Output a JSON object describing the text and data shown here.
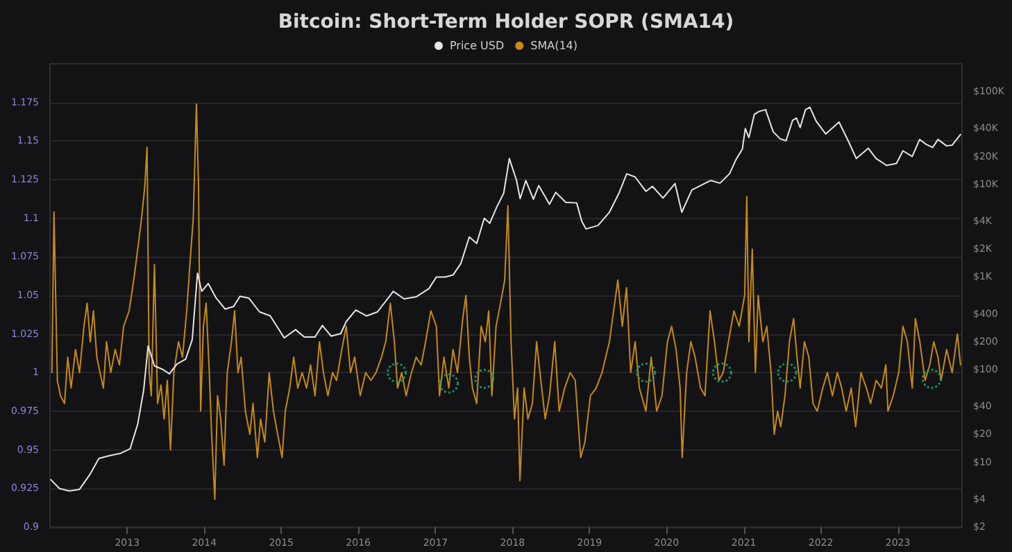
{
  "chart_data": {
    "type": "line",
    "title": "Bitcoin: Short-Term Holder SOPR (SMA14)",
    "legend": "top",
    "grid": "y",
    "xlim": [
      "2012-01-01",
      "2023-11-01"
    ],
    "xticks": [
      "2013",
      "2014",
      "2015",
      "2016",
      "2017",
      "2018",
      "2019",
      "2020",
      "2021",
      "2022",
      "2023"
    ],
    "ylim": [
      0.9,
      1.2
    ],
    "yticks": [
      0.9,
      0.925,
      0.95,
      0.975,
      1,
      1.025,
      1.05,
      1.075,
      1.1,
      1.125,
      1.15,
      1.175
    ],
    "log": "y2",
    "y2lim": [
      2,
      200000
    ],
    "y2ticks": [
      {
        "value": 2,
        "label": "$2"
      },
      {
        "value": 4,
        "label": "$4"
      },
      {
        "value": 10,
        "label": "$10"
      },
      {
        "value": 20,
        "label": "$20"
      },
      {
        "value": 40,
        "label": "$40"
      },
      {
        "value": 100,
        "label": "$100"
      },
      {
        "value": 200,
        "label": "$200"
      },
      {
        "value": 400,
        "label": "$400"
      },
      {
        "value": 1000,
        "label": "$1K"
      },
      {
        "value": 2000,
        "label": "$2K"
      },
      {
        "value": 4000,
        "label": "$4K"
      },
      {
        "value": 10000,
        "label": "$10K"
      },
      {
        "value": 20000,
        "label": "$20K"
      },
      {
        "value": 40000,
        "label": "$40K"
      },
      {
        "value": 100000,
        "label": "$100K"
      }
    ],
    "series": [
      {
        "name": "Price USD",
        "color": "#e6e6e6",
        "axis": "y2",
        "marker": "none",
        "x": [
          "2012-01-05",
          "2012-02-15",
          "2012-04-01",
          "2012-05-20",
          "2012-07-10",
          "2012-08-20",
          "2012-10-10",
          "2012-12-01",
          "2013-01-15",
          "2013-02-20",
          "2013-03-20",
          "2013-04-10",
          "2013-05-10",
          "2013-06-20",
          "2013-07-20",
          "2013-08-25",
          "2013-10-05",
          "2013-11-05",
          "2013-11-30",
          "2013-12-20",
          "2014-01-20",
          "2014-02-25",
          "2014-04-10",
          "2014-05-20",
          "2014-06-20",
          "2014-08-01",
          "2014-09-20",
          "2014-11-10",
          "2015-01-15",
          "2015-03-10",
          "2015-04-20",
          "2015-06-10",
          "2015-07-15",
          "2015-08-25",
          "2015-10-10",
          "2015-11-05",
          "2015-12-20",
          "2016-02-10",
          "2016-04-01",
          "2016-06-15",
          "2016-08-05",
          "2016-10-01",
          "2016-12-01",
          "2017-01-05",
          "2017-02-15",
          "2017-03-25",
          "2017-05-01",
          "2017-06-10",
          "2017-07-15",
          "2017-08-20",
          "2017-09-15",
          "2017-10-20",
          "2017-11-20",
          "2017-12-17",
          "2018-01-20",
          "2018-02-06",
          "2018-03-05",
          "2018-04-10",
          "2018-05-05",
          "2018-06-25",
          "2018-07-25",
          "2018-09-10",
          "2018-11-01",
          "2018-11-25",
          "2018-12-15",
          "2019-02-10",
          "2019-04-05",
          "2019-05-20",
          "2019-06-26",
          "2019-08-05",
          "2019-09-25",
          "2019-10-26",
          "2019-12-15",
          "2020-02-10",
          "2020-03-13",
          "2020-04-30",
          "2020-06-10",
          "2020-07-28",
          "2020-09-10",
          "2020-10-25",
          "2020-11-25",
          "2020-12-25",
          "2021-01-08",
          "2021-01-25",
          "2021-02-20",
          "2021-03-13",
          "2021-04-14",
          "2021-05-20",
          "2021-06-22",
          "2021-07-20",
          "2021-08-20",
          "2021-09-07",
          "2021-09-25",
          "2021-10-20",
          "2021-11-10",
          "2021-12-10",
          "2022-01-24",
          "2022-03-28",
          "2022-05-12",
          "2022-06-18",
          "2022-08-14",
          "2022-09-20",
          "2022-11-09",
          "2022-12-25",
          "2023-01-25",
          "2023-03-10",
          "2023-04-14",
          "2023-05-15",
          "2023-06-15",
          "2023-07-10",
          "2023-08-20",
          "2023-09-15",
          "2023-10-25"
        ],
        "values": [
          6.5,
          5.2,
          4.9,
          5.1,
          7.5,
          11,
          11.8,
          12.5,
          14,
          26,
          60,
          180,
          110,
          100,
          90,
          115,
          130,
          210,
          1100,
          700,
          850,
          600,
          450,
          480,
          620,
          590,
          420,
          380,
          220,
          270,
          225,
          225,
          300,
          230,
          245,
          330,
          440,
          380,
          420,
          700,
          580,
          610,
          750,
          1000,
          1000,
          1050,
          1400,
          2700,
          2300,
          4300,
          3800,
          5800,
          8000,
          19000,
          11000,
          7000,
          11000,
          6900,
          9700,
          6100,
          8200,
          6400,
          6300,
          4000,
          3300,
          3600,
          5000,
          8000,
          13000,
          12000,
          8400,
          9500,
          7100,
          10200,
          5000,
          8700,
          9700,
          11000,
          10300,
          13000,
          18500,
          24000,
          40000,
          32000,
          57000,
          61000,
          64000,
          37000,
          31000,
          29500,
          49000,
          52000,
          41000,
          64000,
          68000,
          48000,
          35000,
          47000,
          29000,
          19000,
          24500,
          19000,
          16000,
          16800,
          23000,
          20000,
          30500,
          27000,
          25000,
          30500,
          26000,
          26500,
          34500
        ]
      },
      {
        "name": "SMA(14)",
        "color": "#c58a18",
        "marker": "none",
        "x": [
          "2012-01-10",
          "2012-01-20",
          "2012-02-05",
          "2012-02-20",
          "2012-03-10",
          "2012-03-25",
          "2012-04-10",
          "2012-05-01",
          "2012-05-20",
          "2012-06-10",
          "2012-06-25",
          "2012-07-10",
          "2012-07-25",
          "2012-08-10",
          "2012-08-25",
          "2012-09-10",
          "2012-09-25",
          "2012-10-15",
          "2012-11-05",
          "2012-11-25",
          "2012-12-15",
          "2013-01-10",
          "2013-02-01",
          "2013-02-20",
          "2013-03-10",
          "2013-03-25",
          "2013-04-05",
          "2013-04-15",
          "2013-04-25",
          "2013-05-10",
          "2013-05-25",
          "2013-06-10",
          "2013-06-25",
          "2013-07-10",
          "2013-07-25",
          "2013-08-10",
          "2013-09-01",
          "2013-09-20",
          "2013-10-10",
          "2013-10-25",
          "2013-11-10",
          "2013-11-25",
          "2013-12-05",
          "2013-12-15",
          "2013-12-28",
          "2014-01-10",
          "2014-01-25",
          "2014-02-05",
          "2014-02-20",
          "2014-03-05",
          "2014-03-20",
          "2014-04-05",
          "2014-04-20",
          "2014-05-10",
          "2014-05-25",
          "2014-06-10",
          "2014-06-25",
          "2014-07-15",
          "2014-08-05",
          "2014-08-20",
          "2014-09-10",
          "2014-09-25",
          "2014-10-15",
          "2014-11-05",
          "2014-11-25",
          "2014-12-15",
          "2015-01-05",
          "2015-01-20",
          "2015-02-10",
          "2015-03-01",
          "2015-03-20",
          "2015-04-10",
          "2015-05-01",
          "2015-05-20",
          "2015-06-10",
          "2015-07-01",
          "2015-07-20",
          "2015-08-10",
          "2015-09-01",
          "2015-09-20",
          "2015-10-15",
          "2015-11-05",
          "2015-11-25",
          "2015-12-15",
          "2016-01-10",
          "2016-02-05",
          "2016-03-01",
          "2016-03-25",
          "2016-04-20",
          "2016-05-10",
          "2016-06-01",
          "2016-06-20",
          "2016-07-05",
          "2016-07-25",
          "2016-08-15",
          "2016-09-05",
          "2016-10-01",
          "2016-10-25",
          "2016-11-15",
          "2016-12-10",
          "2017-01-05",
          "2017-01-20",
          "2017-02-10",
          "2017-03-05",
          "2017-03-25",
          "2017-04-15",
          "2017-05-10",
          "2017-05-25",
          "2017-06-10",
          "2017-06-25",
          "2017-07-15",
          "2017-08-05",
          "2017-08-25",
          "2017-09-10",
          "2017-09-25",
          "2017-10-15",
          "2017-11-05",
          "2017-11-25",
          "2017-12-10",
          "2017-12-25",
          "2018-01-10",
          "2018-01-25",
          "2018-02-05",
          "2018-02-25",
          "2018-03-15",
          "2018-04-05",
          "2018-04-25",
          "2018-05-15",
          "2018-06-05",
          "2018-06-25",
          "2018-07-20",
          "2018-08-10",
          "2018-09-05",
          "2018-10-01",
          "2018-10-25",
          "2018-11-20",
          "2018-12-10",
          "2019-01-05",
          "2019-02-01",
          "2019-03-01",
          "2019-04-05",
          "2019-04-25",
          "2019-05-15",
          "2019-06-05",
          "2019-06-25",
          "2019-07-15",
          "2019-08-05",
          "2019-08-25",
          "2019-09-25",
          "2019-10-20",
          "2019-11-15",
          "2019-12-10",
          "2020-01-05",
          "2020-01-25",
          "2020-02-15",
          "2020-03-05",
          "2020-03-15",
          "2020-04-05",
          "2020-04-25",
          "2020-05-15",
          "2020-06-10",
          "2020-07-01",
          "2020-07-25",
          "2020-08-15",
          "2020-09-05",
          "2020-09-25",
          "2020-10-20",
          "2020-11-15",
          "2020-12-10",
          "2021-01-05",
          "2021-01-15",
          "2021-01-25",
          "2021-02-10",
          "2021-02-25",
          "2021-03-10",
          "2021-04-01",
          "2021-04-20",
          "2021-05-10",
          "2021-05-25",
          "2021-06-10",
          "2021-06-25",
          "2021-07-15",
          "2021-08-05",
          "2021-08-25",
          "2021-09-10",
          "2021-09-25",
          "2021-10-15",
          "2021-11-05",
          "2021-11-25",
          "2021-12-15",
          "2022-01-10",
          "2022-02-01",
          "2022-02-25",
          "2022-03-20",
          "2022-04-10",
          "2022-05-01",
          "2022-05-25",
          "2022-06-15",
          "2022-07-10",
          "2022-08-05",
          "2022-08-25",
          "2022-09-20",
          "2022-10-15",
          "2022-11-05",
          "2022-11-15",
          "2022-12-10",
          "2023-01-05",
          "2023-01-25",
          "2023-02-15",
          "2023-03-10",
          "2023-03-25",
          "2023-04-15",
          "2023-05-10",
          "2023-06-01",
          "2023-06-20",
          "2023-07-10",
          "2023-07-25",
          "2023-08-20",
          "2023-09-15",
          "2023-10-10",
          "2023-10-25"
        ],
        "values": [
          1.0,
          1.104,
          0.995,
          0.985,
          0.98,
          1.01,
          0.99,
          1.015,
          1.0,
          1.03,
          1.045,
          1.02,
          1.04,
          1.01,
          1.0,
          0.99,
          1.02,
          1.0,
          1.015,
          1.005,
          1.03,
          1.04,
          1.06,
          1.08,
          1.1,
          1.12,
          1.146,
          1.0,
          0.985,
          1.07,
          0.98,
          0.992,
          0.97,
          0.995,
          0.95,
          1.0,
          1.02,
          1.01,
          1.04,
          1.07,
          1.1,
          1.174,
          1.12,
          0.975,
          1.03,
          1.045,
          1.0,
          0.96,
          0.918,
          0.985,
          0.97,
          0.94,
          1.0,
          1.02,
          1.04,
          1.0,
          1.01,
          0.975,
          0.96,
          0.98,
          0.945,
          0.97,
          0.955,
          1.0,
          0.975,
          0.96,
          0.945,
          0.975,
          0.99,
          1.01,
          0.99,
          1.0,
          0.99,
          1.005,
          0.985,
          1.02,
          1.0,
          0.985,
          1.0,
          0.995,
          1.015,
          1.03,
          1.0,
          1.01,
          0.985,
          1.0,
          0.995,
          1.0,
          1.01,
          1.02,
          1.045,
          1.02,
          0.99,
          1.0,
          0.985,
          0.998,
          1.01,
          1.005,
          1.02,
          1.04,
          1.03,
          0.985,
          1.01,
          0.99,
          1.015,
          1.0,
          1.035,
          1.05,
          1.01,
          0.99,
          0.98,
          1.03,
          1.02,
          1.04,
          0.985,
          1.03,
          1.045,
          1.06,
          1.108,
          1.02,
          0.97,
          0.99,
          0.93,
          0.99,
          0.97,
          0.98,
          1.02,
          0.995,
          0.97,
          0.985,
          1.02,
          0.975,
          0.99,
          1.0,
          0.995,
          0.945,
          0.955,
          0.985,
          0.99,
          1.0,
          1.02,
          1.04,
          1.06,
          1.03,
          1.055,
          1.0,
          1.02,
          0.99,
          0.975,
          1.01,
          0.975,
          0.985,
          1.02,
          1.03,
          1.015,
          0.99,
          0.945,
          1.0,
          1.02,
          1.01,
          0.99,
          0.985,
          1.04,
          1.02,
          0.995,
          1.0,
          1.02,
          1.04,
          1.03,
          1.05,
          1.114,
          1.02,
          1.08,
          1.0,
          1.05,
          1.02,
          1.03,
          1.0,
          0.96,
          0.975,
          0.965,
          0.985,
          1.02,
          1.035,
          1.01,
          0.99,
          1.02,
          1.01,
          0.98,
          0.975,
          0.99,
          1.0,
          0.985,
          1.0,
          0.99,
          0.975,
          0.99,
          0.965,
          1.0,
          0.99,
          0.98,
          0.995,
          0.99,
          1.005,
          0.975,
          0.985,
          1.0,
          1.03,
          1.02,
          0.99,
          1.035,
          1.02,
          0.995,
          1.005,
          1.02,
          1.01,
          0.995,
          1.015,
          1.0,
          1.025,
          1.005
        ]
      },
      {
        "type": "scatter",
        "color": "#22a874",
        "marker": "circle",
        "line_style": "dotted",
        "x": [
          "2016-07-01",
          "2017-03-05",
          "2017-08-20",
          "2019-09-25",
          "2020-09-20",
          "2021-07-25",
          "2023-06-10"
        ],
        "values": [
          1.0,
          0.993,
          0.996,
          1.0,
          1.0,
          1.0,
          0.996
        ]
      }
    ]
  }
}
